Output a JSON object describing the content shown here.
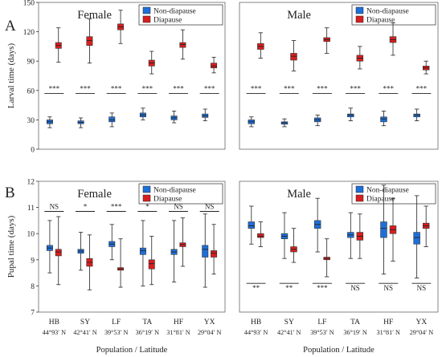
{
  "colors": {
    "non_diapause": "#1e6fd9",
    "diapause": "#d81e1e",
    "whisker": "#222222",
    "frame": "#666666"
  },
  "chart_data": [
    {
      "type": "box",
      "panel": "A",
      "subplot": "Female",
      "ylabel": "Larval time (days)",
      "ylim": [
        0,
        150
      ],
      "yticks": [
        0,
        30,
        60,
        90,
        120,
        150
      ],
      "grid": false,
      "legend": {
        "position": "top-right",
        "entries": [
          "Non-diapause",
          "Diapause"
        ]
      },
      "categories": [
        "HB",
        "SY",
        "LF",
        "TA",
        "HF",
        "YX"
      ],
      "latitudes": [
        "",
        "",
        "",
        "",
        "",
        ""
      ],
      "series": [
        {
          "name": "Non-diapause",
          "color": "#1e6fd9",
          "boxes": [
            {
              "min": 22,
              "q1": 26,
              "median": 28,
              "q3": 30,
              "max": 33
            },
            {
              "min": 22,
              "q1": 26,
              "median": 27.5,
              "q3": 29,
              "max": 32
            },
            {
              "min": 23,
              "q1": 28,
              "median": 30,
              "q3": 33,
              "max": 37
            },
            {
              "min": 30,
              "q1": 33,
              "median": 35,
              "q3": 37,
              "max": 42
            },
            {
              "min": 27,
              "q1": 30,
              "median": 32,
              "q3": 34,
              "max": 39
            },
            {
              "min": 29,
              "q1": 32.5,
              "median": 34,
              "q3": 36,
              "max": 41
            }
          ]
        },
        {
          "name": "Diapause",
          "color": "#d81e1e",
          "boxes": [
            {
              "min": 89,
              "q1": 103,
              "median": 106,
              "q3": 109,
              "max": 124
            },
            {
              "min": 88,
              "q1": 106,
              "median": 111,
              "q3": 115,
              "max": 133
            },
            {
              "min": 108,
              "q1": 122,
              "median": 125,
              "q3": 128,
              "max": 142
            },
            {
              "min": 77,
              "q1": 85,
              "median": 88,
              "q3": 91,
              "max": 100
            },
            {
              "min": 92,
              "q1": 104,
              "median": 107,
              "q3": 109,
              "max": 122
            },
            {
              "min": 78,
              "q1": 83,
              "median": 85,
              "q3": 88,
              "max": 94
            }
          ]
        }
      ],
      "significance": [
        "***",
        "***",
        "***",
        "***",
        "***",
        "***"
      ],
      "sig_level": 57
    },
    {
      "type": "box",
      "panel": "",
      "subplot": "Male",
      "ylim": [
        0,
        150
      ],
      "grid": false,
      "legend": {
        "position": "top-right",
        "entries": [
          "Non-diapause",
          "Diapause"
        ]
      },
      "categories": [
        "HB",
        "SY",
        "LF",
        "TA",
        "HF",
        "YX"
      ],
      "series": [
        {
          "name": "Non-diapause",
          "color": "#1e6fd9",
          "boxes": [
            {
              "min": 23,
              "q1": 26,
              "median": 28,
              "q3": 30,
              "max": 33
            },
            {
              "min": 23,
              "q1": 25.5,
              "median": 27,
              "q3": 28,
              "max": 31
            },
            {
              "min": 24,
              "q1": 28,
              "median": 30,
              "q3": 32,
              "max": 35
            },
            {
              "min": 29,
              "q1": 33,
              "median": 35,
              "q3": 36,
              "max": 42
            },
            {
              "min": 24,
              "q1": 28,
              "median": 31,
              "q3": 33,
              "max": 39
            },
            {
              "min": 29,
              "q1": 33,
              "median": 35,
              "q3": 36,
              "max": 41
            }
          ]
        },
        {
          "name": "Diapause",
          "color": "#d81e1e",
          "boxes": [
            {
              "min": 93,
              "q1": 102,
              "median": 105,
              "q3": 108,
              "max": 119
            },
            {
              "min": 80,
              "q1": 91,
              "median": 95,
              "q3": 98,
              "max": 111
            },
            {
              "min": 98,
              "q1": 110,
              "median": 112,
              "q3": 114,
              "max": 124
            },
            {
              "min": 82,
              "q1": 90,
              "median": 93,
              "q3": 96,
              "max": 105
            },
            {
              "min": 96,
              "q1": 109,
              "median": 112,
              "q3": 115,
              "max": 129
            },
            {
              "min": 77,
              "q1": 81,
              "median": 83,
              "q3": 85,
              "max": 90
            }
          ]
        }
      ],
      "significance": [
        "***",
        "***",
        "***",
        "***",
        "***",
        "***"
      ],
      "sig_level": 57
    },
    {
      "type": "box",
      "panel": "B",
      "subplot": "Female",
      "ylabel": "Pupal time (days)",
      "xlabel": "Population / Latitude",
      "ylim": [
        7,
        12
      ],
      "yticks": [
        7,
        8,
        9,
        10,
        11,
        12
      ],
      "grid": false,
      "legend": {
        "position": "top-right",
        "entries": [
          "Non-diapause",
          "Diapause"
        ]
      },
      "categories": [
        "HB",
        "SY",
        "LF",
        "TA",
        "HF",
        "YX"
      ],
      "latitudes": [
        "44°93′ N",
        "42°41′ N",
        "39°53′ N",
        "36°19′ N",
        "31°81′ N",
        "29°04′ N"
      ],
      "series": [
        {
          "name": "Non-diapause",
          "color": "#1e6fd9",
          "boxes": [
            {
              "min": 8.5,
              "q1": 9.35,
              "median": 9.45,
              "q3": 9.55,
              "max": 10.5
            },
            {
              "min": 8.6,
              "q1": 9.25,
              "median": 9.33,
              "q3": 9.4,
              "max": 10.05
            },
            {
              "min": 9.0,
              "q1": 9.5,
              "median": 9.6,
              "q3": 9.7,
              "max": 10.35
            },
            {
              "min": 8.0,
              "q1": 9.2,
              "median": 9.35,
              "q3": 9.45,
              "max": 10.5
            },
            {
              "min": 8.15,
              "q1": 9.2,
              "median": 9.3,
              "q3": 9.4,
              "max": 10.5
            },
            {
              "min": 7.95,
              "q1": 9.1,
              "median": 9.4,
              "q3": 9.55,
              "max": 10.75
            }
          ]
        },
        {
          "name": "Diapause",
          "color": "#d81e1e",
          "boxes": [
            {
              "min": 8.05,
              "q1": 9.15,
              "median": 9.3,
              "q3": 9.4,
              "max": 10.65
            },
            {
              "min": 7.85,
              "q1": 8.75,
              "median": 8.9,
              "q3": 9.05,
              "max": 9.95
            },
            {
              "min": 7.95,
              "q1": 8.6,
              "median": 8.65,
              "q3": 8.7,
              "max": 9.8
            },
            {
              "min": 8.05,
              "q1": 8.65,
              "median": 8.85,
              "q3": 9.0,
              "max": 9.9
            },
            {
              "min": 8.75,
              "q1": 9.5,
              "median": 9.58,
              "q3": 9.65,
              "max": 10.6
            },
            {
              "min": 8.45,
              "q1": 9.1,
              "median": 9.25,
              "q3": 9.35,
              "max": 10.35
            }
          ]
        }
      ],
      "significance": [
        "NS",
        "*",
        "***",
        "*",
        "NS",
        "NS"
      ],
      "sig_position": "top",
      "sig_level": 10.85
    },
    {
      "type": "box",
      "panel": "",
      "subplot": "Male",
      "xlabel": "Population / Latitude",
      "ylim": [
        7,
        12
      ],
      "grid": false,
      "legend": {
        "position": "top-right",
        "entries": [
          "Non-diapause",
          "Diapause"
        ]
      },
      "categories": [
        "HB",
        "SY",
        "LF",
        "TA",
        "HF",
        "YX"
      ],
      "latitudes": [
        "44°93′ N",
        "42°41′ N",
        "39°53′ N",
        "36°19′ N",
        "31°81′ N",
        "29°04′ N"
      ],
      "series": [
        {
          "name": "Non-diapause",
          "color": "#1e6fd9",
          "boxes": [
            {
              "min": 9.6,
              "q1": 10.2,
              "median": 10.3,
              "q3": 10.45,
              "max": 11.05
            },
            {
              "min": 9.05,
              "q1": 9.8,
              "median": 9.9,
              "q3": 10.0,
              "max": 10.8
            },
            {
              "min": 9.3,
              "q1": 10.2,
              "median": 10.35,
              "q3": 10.5,
              "max": 11.35
            },
            {
              "min": 9.05,
              "q1": 9.85,
              "median": 9.95,
              "q3": 10.05,
              "max": 10.8
            },
            {
              "min": 8.45,
              "q1": 9.85,
              "median": 10.2,
              "q3": 10.45,
              "max": 11.85
            },
            {
              "min": 8.3,
              "q1": 9.6,
              "median": 9.85,
              "q3": 10.05,
              "max": 11.45
            }
          ]
        },
        {
          "name": "Diapause",
          "color": "#d81e1e",
          "boxes": [
            {
              "min": 9.5,
              "q1": 9.85,
              "median": 9.9,
              "q3": 10.0,
              "max": 10.45
            },
            {
              "min": 8.9,
              "q1": 9.3,
              "median": 9.4,
              "q3": 9.5,
              "max": 10.2
            },
            {
              "min": 8.35,
              "q1": 9.0,
              "median": 9.05,
              "q3": 9.1,
              "max": 9.8
            },
            {
              "min": 9.05,
              "q1": 9.75,
              "median": 9.9,
              "q3": 10.05,
              "max": 10.75
            },
            {
              "min": 8.95,
              "q1": 10.0,
              "median": 10.15,
              "q3": 10.3,
              "max": 11.35
            },
            {
              "min": 9.5,
              "q1": 10.2,
              "median": 10.3,
              "q3": 10.4,
              "max": 11.05
            }
          ]
        }
      ],
      "significance": [
        "**",
        "**",
        "***",
        "NS",
        "NS",
        "NS"
      ],
      "sig_position": "bottom",
      "sig_level": 8.1
    }
  ]
}
